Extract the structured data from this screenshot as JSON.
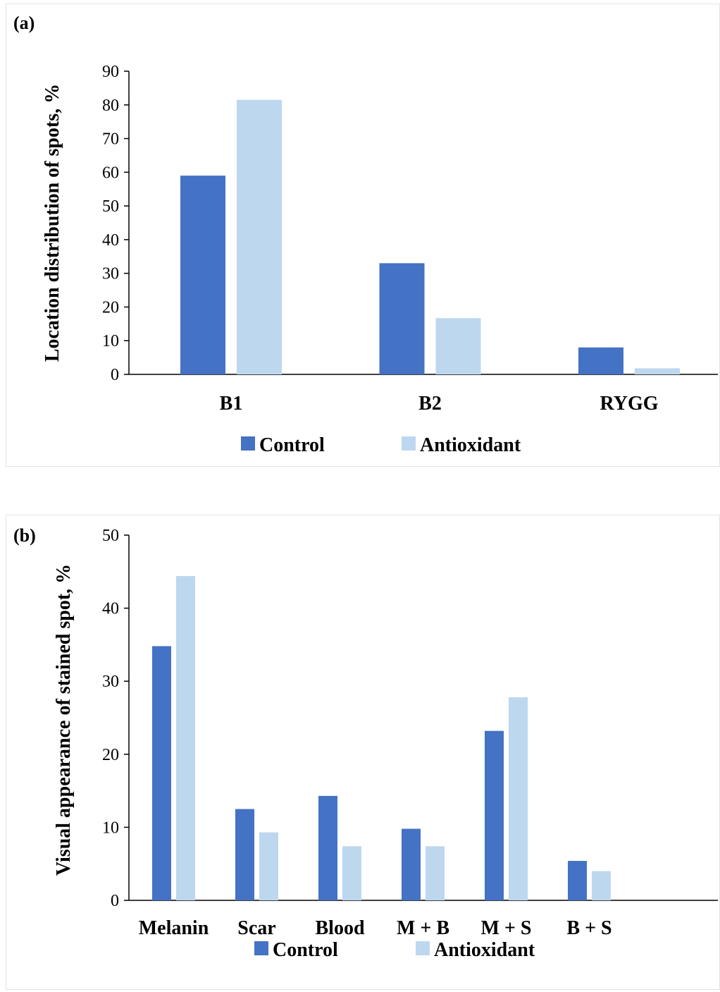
{
  "chart_data": [
    {
      "type": "bar",
      "panel_label": "(a)",
      "categories": [
        "B1",
        "B2",
        "RYGG"
      ],
      "series": [
        {
          "name": "Control",
          "values": [
            59,
            33,
            8
          ],
          "color": "#4472c4"
        },
        {
          "name": "Antioxidant",
          "values": [
            81.5,
            16.7,
            1.8
          ],
          "color": "#bdd7ee"
        }
      ],
      "ylabel": "Location distribution of spots, %",
      "ylim": [
        0,
        90
      ],
      "yticks": [
        "0",
        "10",
        "20",
        "30",
        "40",
        "50",
        "60",
        "70",
        "80",
        "90"
      ],
      "grid": false,
      "legend_position": "bottom"
    },
    {
      "type": "bar",
      "panel_label": "(b)",
      "categories": [
        "Melanin",
        "Scar",
        "Blood",
        "M + B",
        "M + S",
        "B + S"
      ],
      "series": [
        {
          "name": "Control",
          "values": [
            34.8,
            12.5,
            14.3,
            9.8,
            23.2,
            5.4
          ],
          "color": "#4472c4"
        },
        {
          "name": "Antioxidant",
          "values": [
            44.4,
            9.3,
            7.4,
            7.4,
            27.8,
            4.0
          ],
          "color": "#bdd7ee"
        }
      ],
      "ylabel": "Visual appearance of stained spot, %",
      "ylim": [
        0,
        50
      ],
      "yticks": [
        "0",
        "10",
        "20",
        "30",
        "40",
        "50"
      ],
      "grid": false,
      "legend_position": "bottom"
    }
  ]
}
